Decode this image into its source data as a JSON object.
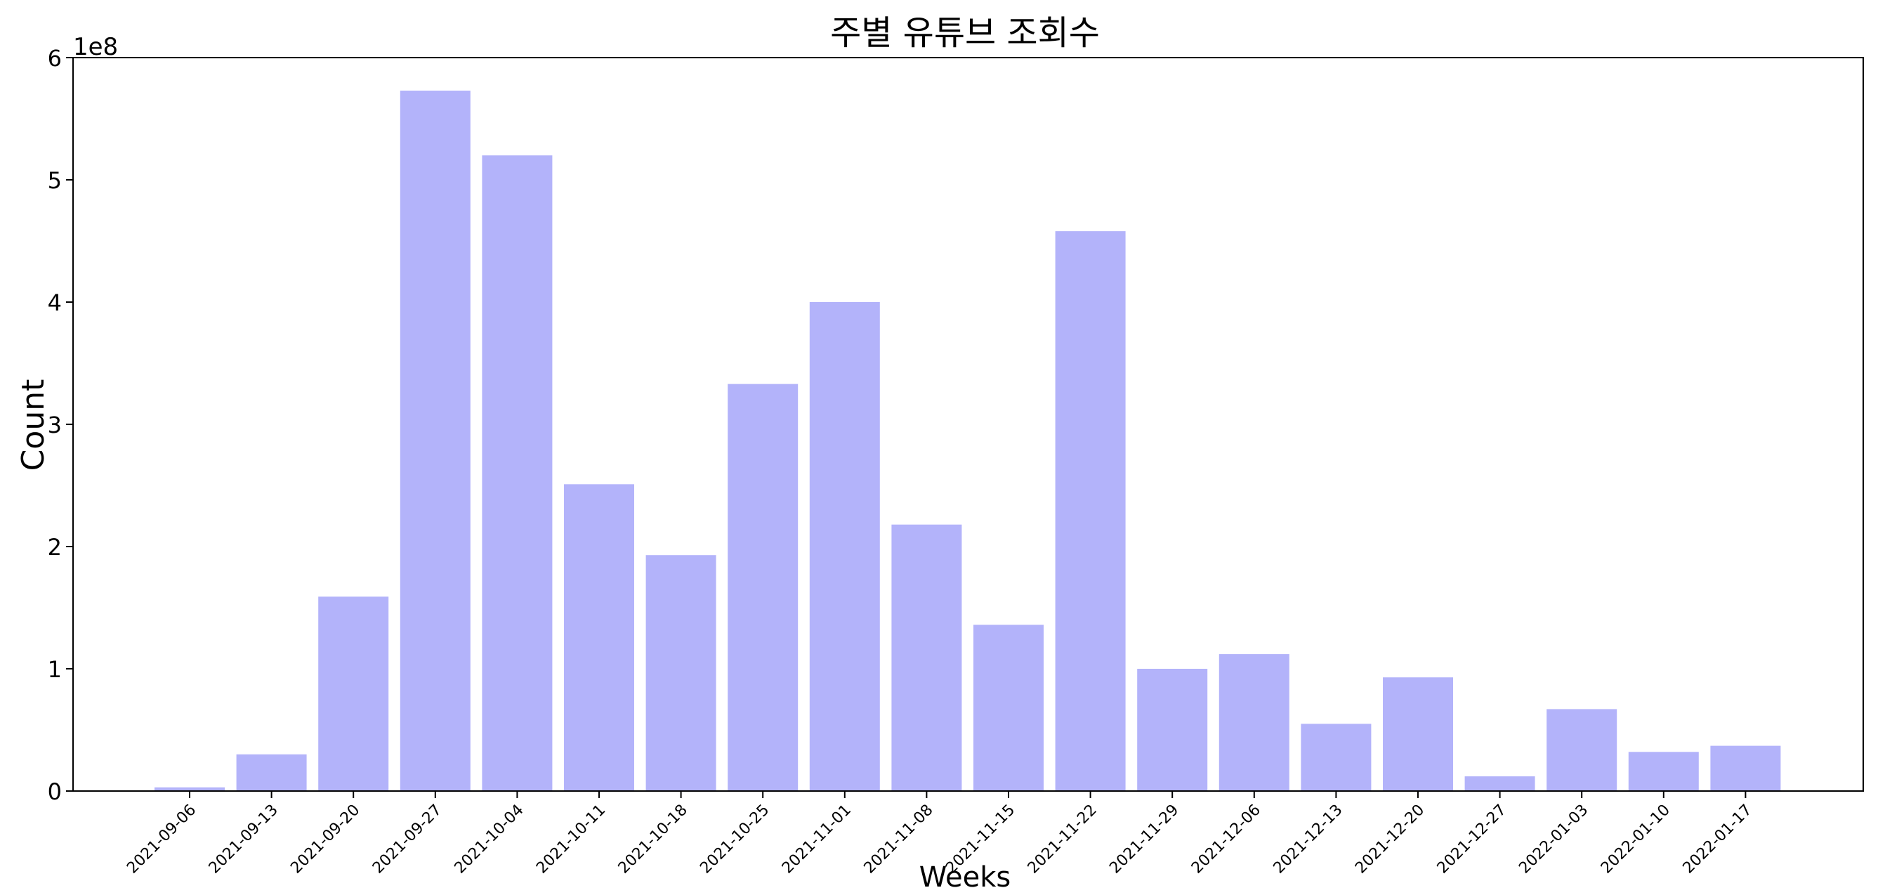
{
  "chart_data": {
    "type": "bar",
    "title": "주별 유튜브 조회수",
    "xlabel": "Weeks",
    "ylabel": "Count",
    "y_offset_label": "1e8",
    "ylim": [
      0,
      6
    ],
    "y_ticks": [
      0,
      1,
      2,
      3,
      4,
      5,
      6
    ],
    "y_tick_labels": [
      "0",
      "1",
      "2",
      "3",
      "4",
      "5",
      "6"
    ],
    "grid": false,
    "bar_color": "#b3b3fa",
    "categories": [
      "2021-09-06",
      "2021-09-13",
      "2021-09-20",
      "2021-09-27",
      "2021-10-04",
      "2021-10-11",
      "2021-10-18",
      "2021-10-25",
      "2021-11-01",
      "2021-11-08",
      "2021-11-15",
      "2021-11-22",
      "2021-11-29",
      "2021-12-06",
      "2021-12-13",
      "2021-12-20",
      "2021-12-27",
      "2022-01-03",
      "2022-01-10",
      "2022-01-17"
    ],
    "values": [
      0.03,
      0.3,
      1.59,
      5.73,
      5.2,
      2.51,
      1.93,
      3.33,
      4.0,
      2.18,
      1.36,
      4.58,
      1.0,
      1.12,
      0.55,
      0.93,
      0.12,
      0.67,
      0.32,
      0.37
    ]
  }
}
